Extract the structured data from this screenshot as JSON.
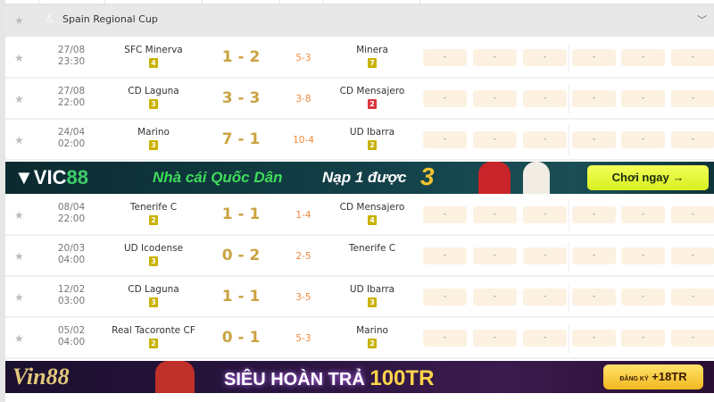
{
  "league": {
    "name": "Spain Regional Cup",
    "star_icon": "star-icon",
    "trophy_icon": "trophy-icon",
    "chevron_icon": "chevron-down-icon"
  },
  "odds_placeholder": "-",
  "matches_top": [
    {
      "date": "27/08",
      "time": "23:30",
      "home": "SFC Minerva",
      "home_rank": "4",
      "home_rank_color": "#c9b200",
      "score": "1 - 2",
      "corner": "5-3",
      "away": "Minera",
      "away_rank": "7",
      "away_rank_color": "#c9b200"
    },
    {
      "date": "27/08",
      "time": "22:00",
      "home": "CD Laguna",
      "home_rank": "3",
      "home_rank_color": "#c9b200",
      "score": "3 - 3",
      "corner": "3-8",
      "away": "CD Mensajero",
      "away_rank": "2",
      "away_rank_color": "#d9363e"
    },
    {
      "date": "24/04",
      "time": "02:00",
      "home": "Marino",
      "home_rank": "3",
      "home_rank_color": "#c9b200",
      "score": "7 - 1",
      "corner": "10-4",
      "away": "UD Ibarra",
      "away_rank": "2",
      "away_rank_color": "#c9b200"
    }
  ],
  "matches_bottom": [
    {
      "date": "08/04",
      "time": "22:00",
      "home": "Tenerife C",
      "home_rank": "2",
      "score": "1 - 1",
      "corner": "1-4",
      "away": "CD Mensajero",
      "away_rank": "4"
    },
    {
      "date": "20/03",
      "time": "04:00",
      "home": "UD Icodense",
      "home_rank": "3",
      "score": "0 - 2",
      "corner": "2-5",
      "away": "Tenerife C",
      "away_rank": ""
    },
    {
      "date": "12/02",
      "time": "03:00",
      "home": "CD Laguna",
      "home_rank": "3",
      "score": "1 - 1",
      "corner": "3-5",
      "away": "UD Ibarra",
      "away_rank": "3"
    },
    {
      "date": "05/02",
      "time": "04:00",
      "home": "Real Tacoronte CF",
      "home_rank": "2",
      "score": "0 - 1",
      "corner": "5-3",
      "away": "Marino",
      "away_rank": "2"
    }
  ],
  "banner1": {
    "logo": "VIC88",
    "tagline": "Nhà cái Quốc Dân",
    "offer": "Nạp 1 được",
    "offer_number": "3",
    "cta": "Chơi ngay →"
  },
  "banner2": {
    "logo": "Vin88",
    "headline": "SIÊU HOÀN TRẢ",
    "headline_amount": "100TR",
    "cta_small": "ĐĂNG KÝ",
    "cta": "+18TR"
  },
  "colors": {
    "score": "#c9a341",
    "corner": "#f08a3c",
    "odds_bg": "#fdf1e2",
    "rank_default": "#c9b200",
    "rank_red": "#d9363e"
  }
}
